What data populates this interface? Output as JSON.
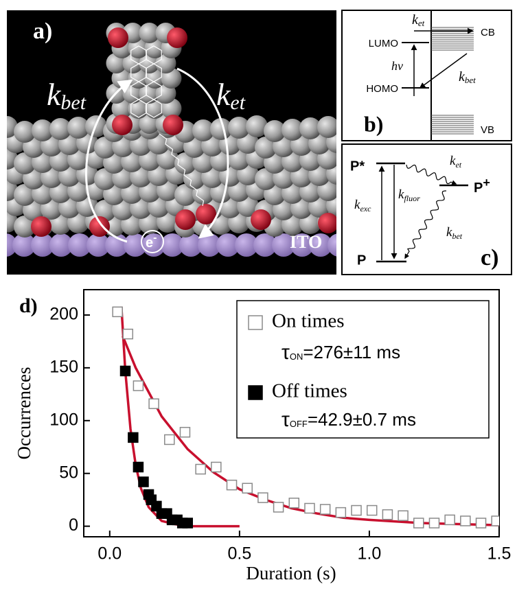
{
  "panel_a": {
    "label": "a)",
    "rate_left": {
      "symbol": "k",
      "sub": "bet"
    },
    "rate_right": {
      "symbol": "k",
      "sub": "et"
    },
    "electron": {
      "symbol": "e",
      "sup": "-"
    },
    "substrate": "ITO"
  },
  "panel_b": {
    "label": "b)",
    "levels": [
      "LUMO",
      "HOMO"
    ],
    "bands": [
      "CB",
      "VB"
    ],
    "excitation": "hν",
    "rate_et": {
      "symbol": "k",
      "sub": "et"
    },
    "rate_bet": {
      "symbol": "k",
      "sub": "bet"
    }
  },
  "panel_c": {
    "label": "c)",
    "excited_state": "P*",
    "cation_state": {
      "symbol": "P",
      "sup": "+"
    },
    "ground_state": "P",
    "rate_exc": {
      "symbol": "k",
      "sub": "exc"
    },
    "rate_fluor": {
      "symbol": "k",
      "sub": "fluor"
    },
    "rate_et": {
      "symbol": "k",
      "sub": "et"
    },
    "rate_bet": {
      "symbol": "k",
      "sub": "bet"
    }
  },
  "chart_data": {
    "type": "scatter",
    "panel_label": "d)",
    "x_label": "Duration (s)",
    "y_label": "Occurrences",
    "xlim": [
      -0.1,
      1.5
    ],
    "ylim": [
      -10,
      224
    ],
    "xticks": [
      {
        "value": 0,
        "label": "0.0"
      },
      0.5,
      {
        "value": 1,
        "label": "1.0"
      },
      1.5
    ],
    "yticks": [
      0,
      50,
      100,
      150,
      200
    ],
    "series": [
      {
        "name": "On times",
        "type": "scatter",
        "marker": "open",
        "color": "#8a8a8a",
        "x": [
          0.03,
          0.07,
          0.11,
          0.17,
          0.23,
          0.29,
          0.35,
          0.41,
          0.47,
          0.53,
          0.59,
          0.65,
          0.71,
          0.77,
          0.83,
          0.89,
          0.95,
          1.01,
          1.07,
          1.13,
          1.19,
          1.25,
          1.31,
          1.37,
          1.43,
          1.49
        ],
        "values": [
          203,
          182,
          133,
          116,
          82,
          89,
          54,
          56,
          39,
          36,
          27,
          18,
          22,
          17,
          16,
          13,
          15,
          15,
          11,
          10,
          3,
          3,
          6,
          5,
          3,
          5
        ]
      },
      {
        "name": "Off times",
        "type": "scatter",
        "marker": "filled",
        "color": "#000000",
        "x": [
          0.06,
          0.09,
          0.11,
          0.13,
          0.15,
          0.16,
          0.18,
          0.2,
          0.22,
          0.24,
          0.26,
          0.28,
          0.3
        ],
        "values": [
          147,
          84,
          56,
          42,
          30,
          25,
          19,
          12,
          12,
          6,
          6,
          3,
          3
        ]
      },
      {
        "type": "line",
        "color": "#c8102e",
        "x": [
          0.05,
          0.1,
          0.2,
          0.3,
          0.4,
          0.5,
          0.6,
          0.7,
          0.8,
          0.9,
          1.0,
          1.2,
          1.5
        ],
        "values": [
          180,
          150,
          104,
          73,
          51,
          35,
          25,
          17,
          12,
          8,
          6,
          3,
          1
        ]
      },
      {
        "type": "line",
        "color": "#c8102e",
        "x": [
          0.045,
          0.06,
          0.08,
          0.1,
          0.12,
          0.15,
          0.2,
          0.25,
          0.3,
          0.4,
          0.5
        ],
        "values": [
          208,
          147,
          92,
          58,
          36,
          18,
          5,
          2,
          0,
          0,
          0
        ]
      }
    ],
    "annotations": [
      {
        "symbol": "τ",
        "sub": "ON",
        "text": "=276±11 ms"
      },
      {
        "symbol": "τ",
        "sub": "OFF",
        "text": "=42.9±0.7 ms"
      }
    ]
  }
}
